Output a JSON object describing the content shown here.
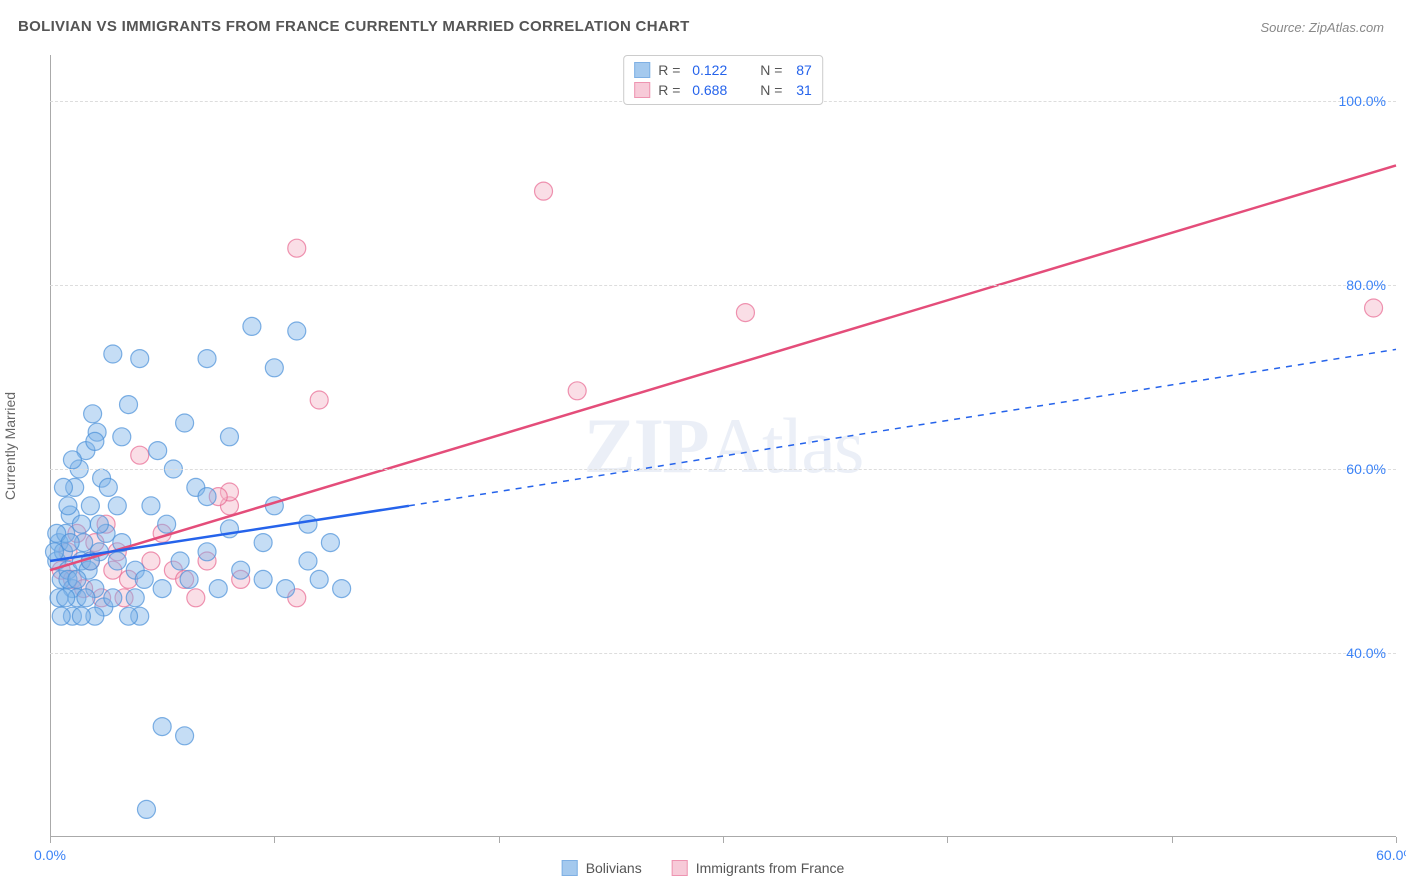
{
  "title": "BOLIVIAN VS IMMIGRANTS FROM FRANCE CURRENTLY MARRIED CORRELATION CHART",
  "source": "Source: ZipAtlas.com",
  "y_axis_label": "Currently Married",
  "watermark": {
    "bold": "ZIP",
    "rest": "Atlas"
  },
  "chart": {
    "type": "scatter",
    "xlim": [
      0,
      60
    ],
    "ylim": [
      20,
      105
    ],
    "x_ticks": [
      0,
      10,
      20,
      30,
      40,
      50,
      60
    ],
    "x_tick_labels": [
      "0.0%",
      "",
      "",
      "",
      "",
      "",
      "60.0%"
    ],
    "y_ticks": [
      40,
      60,
      80,
      100
    ],
    "y_tick_labels": [
      "40.0%",
      "60.0%",
      "80.0%",
      "100.0%"
    ],
    "grid_color": "#dddddd",
    "axis_color": "#aaaaaa",
    "background_color": "#ffffff",
    "x_label_color": "#3b82f6",
    "y_label_color": "#3b82f6",
    "label_fontsize": 14,
    "title_fontsize": 15,
    "marker_radius": 9,
    "marker_opacity": 0.45,
    "marker_stroke_width": 1.2
  },
  "series": {
    "bolivians": {
      "label": "Bolivians",
      "fill_color": "#7eb3e8",
      "stroke_color": "#4a90d9",
      "line_color": "#2563eb",
      "r_value": "0.122",
      "n_value": "87",
      "trend": {
        "x1": 0,
        "y1": 50,
        "x2_solid": 16,
        "y2_solid": 56,
        "x2_dashed": 60,
        "y2_dashed": 73
      },
      "points": [
        [
          0.3,
          50
        ],
        [
          0.4,
          52
        ],
        [
          0.5,
          48
        ],
        [
          0.6,
          51
        ],
        [
          0.7,
          53
        ],
        [
          0.8,
          49
        ],
        [
          0.9,
          55
        ],
        [
          1.0,
          47
        ],
        [
          1.1,
          58
        ],
        [
          1.2,
          46
        ],
        [
          1.3,
          60
        ],
        [
          1.4,
          50
        ],
        [
          1.5,
          52
        ],
        [
          1.6,
          62
        ],
        [
          1.7,
          49
        ],
        [
          1.8,
          56
        ],
        [
          1.9,
          66
        ],
        [
          2.0,
          47
        ],
        [
          2.1,
          64
        ],
        [
          2.2,
          51
        ],
        [
          2.3,
          59
        ],
        [
          2.4,
          45
        ],
        [
          2.5,
          53
        ],
        [
          2.8,
          72.5
        ],
        [
          3.0,
          50
        ],
        [
          3.2,
          52
        ],
        [
          3.5,
          67
        ],
        [
          3.8,
          49
        ],
        [
          4.0,
          72
        ],
        [
          4.2,
          48
        ],
        [
          4.5,
          56
        ],
        [
          4.8,
          62
        ],
        [
          5.0,
          47
        ],
        [
          5.2,
          54
        ],
        [
          4.3,
          23
        ],
        [
          5.8,
          50
        ],
        [
          6.0,
          65
        ],
        [
          6.2,
          48
        ],
        [
          6.5,
          58
        ],
        [
          7.0,
          72
        ],
        [
          7.0,
          51
        ],
        [
          7.5,
          47
        ],
        [
          8.0,
          63.5
        ],
        [
          8.5,
          49
        ],
        [
          9.0,
          75.5
        ],
        [
          9.5,
          48
        ],
        [
          9.5,
          52
        ],
        [
          10.0,
          71
        ],
        [
          10.0,
          56
        ],
        [
          10.5,
          47
        ],
        [
          11.0,
          75
        ],
        [
          11.5,
          50
        ],
        [
          11.5,
          54
        ],
        [
          12.0,
          48
        ],
        [
          12.5,
          52
        ],
        [
          13.0,
          47
        ],
        [
          3.8,
          46
        ],
        [
          5.0,
          32
        ],
        [
          6.0,
          31
        ],
        [
          1.0,
          44
        ],
        [
          2.0,
          44
        ],
        [
          0.5,
          44
        ],
        [
          1.8,
          50
        ],
        [
          2.2,
          54
        ],
        [
          3.0,
          56
        ],
        [
          0.8,
          56
        ],
        [
          1.4,
          54
        ],
        [
          2.0,
          63
        ],
        [
          2.6,
          58
        ],
        [
          3.2,
          63.5
        ],
        [
          0.6,
          58
        ],
        [
          1.0,
          61
        ],
        [
          1.4,
          44
        ],
        [
          0.4,
          46
        ],
        [
          0.8,
          48
        ],
        [
          1.2,
          48
        ],
        [
          0.2,
          51
        ],
        [
          0.3,
          53
        ],
        [
          0.7,
          46
        ],
        [
          0.9,
          52
        ],
        [
          8.0,
          53.5
        ],
        [
          7.0,
          57
        ],
        [
          5.5,
          60
        ],
        [
          4.0,
          44
        ],
        [
          3.5,
          44
        ],
        [
          2.8,
          46
        ],
        [
          1.6,
          46
        ]
      ]
    },
    "france": {
      "label": "Immigrants from France",
      "fill_color": "#f5b5c8",
      "stroke_color": "#e86891",
      "line_color": "#e44d7a",
      "r_value": "0.688",
      "n_value": "31",
      "trend": {
        "x1": 0,
        "y1": 49,
        "x2_solid": 60,
        "y2_solid": 93
      },
      "points": [
        [
          0.5,
          49
        ],
        [
          0.8,
          51
        ],
        [
          1.0,
          48
        ],
        [
          1.2,
          53
        ],
        [
          1.5,
          47
        ],
        [
          1.8,
          50
        ],
        [
          2.0,
          52
        ],
        [
          2.3,
          46
        ],
        [
          2.5,
          54
        ],
        [
          2.8,
          49
        ],
        [
          3.0,
          51
        ],
        [
          3.3,
          46
        ],
        [
          3.5,
          48
        ],
        [
          4.0,
          61.5
        ],
        [
          4.5,
          50
        ],
        [
          5.0,
          53
        ],
        [
          5.5,
          49
        ],
        [
          6.0,
          48
        ],
        [
          6.5,
          46
        ],
        [
          7.0,
          50
        ],
        [
          8.0,
          56
        ],
        [
          8.0,
          57.5
        ],
        [
          8.5,
          48
        ],
        [
          11.0,
          84
        ],
        [
          11.0,
          46
        ],
        [
          12.0,
          67.5
        ],
        [
          22.0,
          90.2
        ],
        [
          23.5,
          68.5
        ],
        [
          31.0,
          77
        ],
        [
          59.0,
          77.5
        ],
        [
          7.5,
          57
        ]
      ]
    }
  },
  "legend_top": {
    "r_label": "R =",
    "n_label": "N ="
  }
}
